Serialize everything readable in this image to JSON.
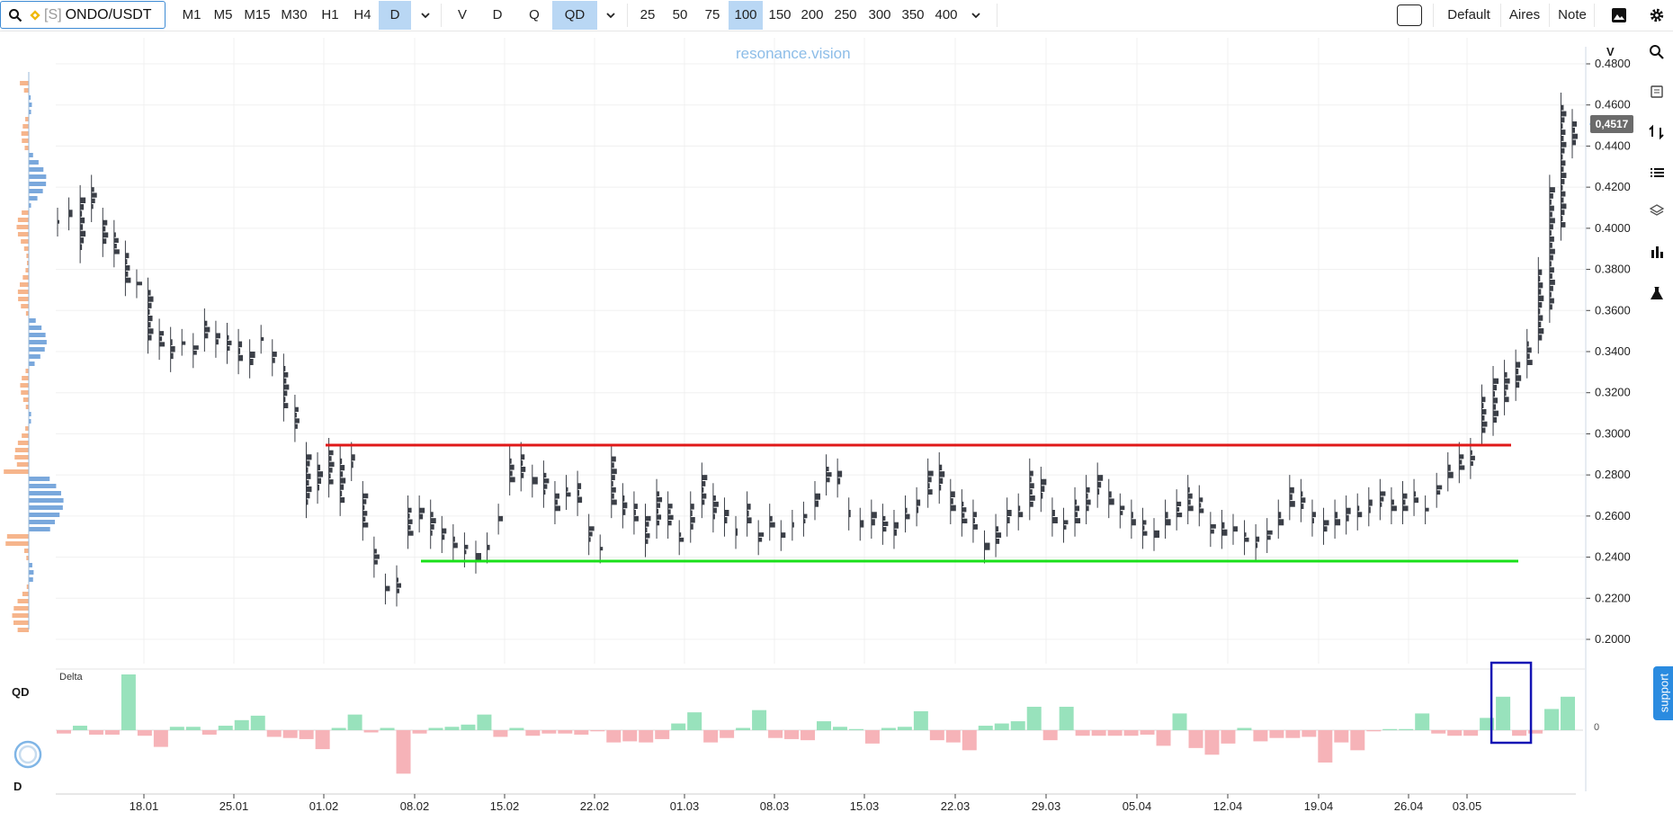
{
  "toolbar": {
    "search_prefix": "[S]",
    "symbol": "ONDO/USDT",
    "timeframes": [
      "M1",
      "M5",
      "M15",
      "M30",
      "H1",
      "H4",
      "D"
    ],
    "active_timeframe": "D",
    "modes": [
      "V",
      "D",
      "Q",
      "QD"
    ],
    "active_mode": "QD",
    "sizes": [
      "25",
      "50",
      "75",
      "100",
      "150",
      "200",
      "250",
      "300",
      "350",
      "400"
    ],
    "active_size": "100",
    "right_buttons": [
      "Default",
      "Aires",
      "Note"
    ],
    "icons": [
      "search-icon",
      "binance-coin-icon",
      "chevron-down-icon",
      "square-icon",
      "image-icon",
      "gear-icon"
    ]
  },
  "watermark": "resonance.vision",
  "price_axis_label": "V",
  "current_price": "0,4517",
  "indicator": {
    "title": "Delta",
    "left_label_top": "QD",
    "left_label_bottom": "D",
    "zero_label": "0"
  },
  "support_label": "support",
  "right_sidebar_icons": [
    "search-icon",
    "note-icon",
    "swap-icon",
    "list-icon",
    "layers-icon",
    "bar-chart-icon",
    "flask-icon"
  ],
  "colors": {
    "candle": "#3b3f47",
    "resistance_line": "#e01818",
    "support_line": "#19e019",
    "delta_positive": "#98e2bc",
    "delta_negative": "#f6b3b8",
    "profile_buy": "#7aa8dc",
    "profile_sell": "#f6b58c",
    "highlight_box": "#1414b4",
    "accent": "#b9d7f4"
  },
  "chart_data": {
    "type": "candlestick",
    "y_axis": {
      "ticks": [
        "0.4800",
        "0.4600",
        "0.4400",
        "0.4200",
        "0.4000",
        "0.3800",
        "0.3600",
        "0.3400",
        "0.3200",
        "0.3000",
        "0.2800",
        "0.2600",
        "0.2400",
        "0.2200",
        "0.2000"
      ],
      "range": [
        0.19,
        0.49
      ]
    },
    "x_axis": {
      "ticks": [
        "18.01",
        "25.01",
        "01.02",
        "08.02",
        "15.02",
        "22.02",
        "01.03",
        "08.03",
        "15.03",
        "22.03",
        "29.03",
        "05.04",
        "12.04",
        "19.04",
        "26.04",
        "03.05"
      ]
    },
    "horizontal_lines": [
      {
        "name": "resistance",
        "price": 0.2955,
        "color": "#e01818"
      },
      {
        "name": "support",
        "price": 0.2385,
        "color": "#19e019"
      }
    ],
    "delta": [
      -3,
      4,
      -4,
      -4,
      50,
      -5,
      -15,
      3,
      3,
      -4,
      4,
      9,
      13,
      -6,
      -7,
      -8,
      -17,
      2,
      14,
      -2,
      2,
      -39,
      -3,
      2,
      3,
      5,
      14,
      -6,
      2,
      -5,
      -3,
      -3,
      -4,
      -1,
      -11,
      -10,
      -11,
      -8,
      6,
      16,
      -11,
      -7,
      2,
      18,
      -7,
      -8,
      -9,
      8,
      3,
      1,
      -12,
      2,
      3,
      17,
      -9,
      -11,
      -18,
      4,
      6,
      8,
      21,
      -9,
      21,
      -5,
      -5,
      -5,
      -5,
      -4,
      -14,
      15,
      -16,
      -22,
      -12,
      2,
      -10,
      -7,
      -7,
      -6,
      -29,
      -11,
      -18,
      -1,
      1,
      1,
      15,
      -3,
      -5,
      -5,
      11,
      30,
      -5,
      -3,
      19,
      30
    ],
    "highlight_indices": [
      89,
      90
    ]
  }
}
